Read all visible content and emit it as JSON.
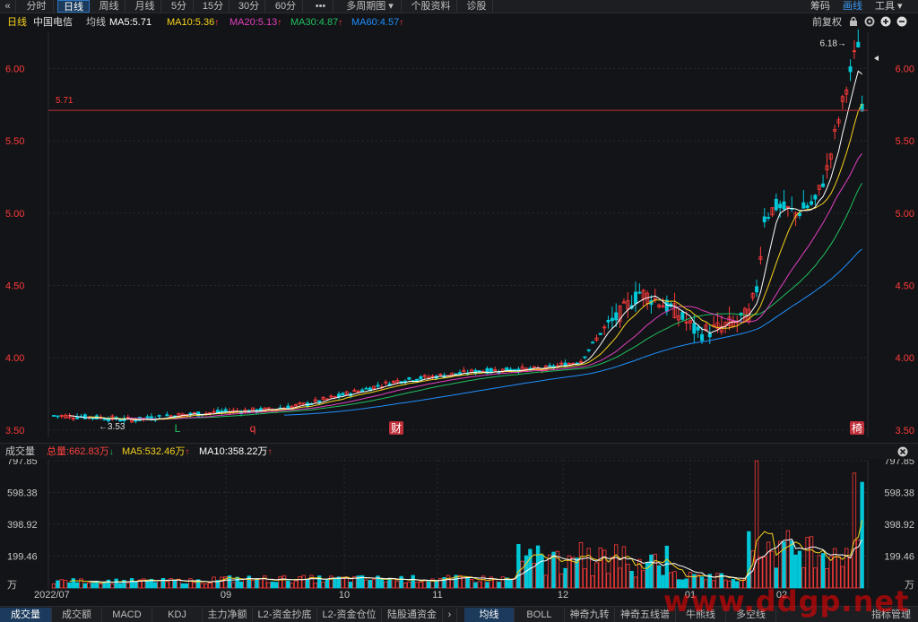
{
  "toolbar": {
    "back_icon": "«",
    "tabs": [
      "分时",
      "日线",
      "周线",
      "月线",
      "5分",
      "15分",
      "30分",
      "60分",
      "•••",
      "多周期图 ▾",
      "个股资料",
      "诊股"
    ],
    "active_tab": "日线",
    "right": [
      "筹码",
      "画线",
      "工具 ▾"
    ]
  },
  "header": {
    "period": "日线",
    "stock_name": "中国电信",
    "ma_title": "均线",
    "ma5": "MA5:5.71",
    "ma10": "MA10:5.36",
    "ma20": "MA20:5.13",
    "ma30": "MA30:4.87",
    "ma60": "MA60:4.57",
    "fq": "前复权"
  },
  "colors": {
    "up": "#ff3b3b",
    "down": "#00c8d8",
    "ma5": "#ffffff",
    "ma10": "#f5d21e",
    "ma20": "#e040c0",
    "ma30": "#20c060",
    "ma60": "#1e90ff",
    "axis_text": "#ff3b3b"
  },
  "chart_data": [
    {
      "type": "candlestick",
      "title": "中国电信 日线",
      "y_ticks": [
        "6.00",
        "5.50",
        "5.00",
        "4.50",
        "4.00",
        "3.50"
      ],
      "ylim": [
        3.45,
        6.25
      ],
      "reference_line": "5.71",
      "max_label": "6.18",
      "min_label": "3.53",
      "events": [
        "L",
        "q",
        "财",
        "椅"
      ],
      "x_ticks": [
        "2022/07",
        "09",
        "10",
        "11",
        "12",
        "01",
        "02"
      ]
    },
    {
      "type": "bar",
      "title": "成交量",
      "legend": [
        "总量:662.83万",
        "MA5:532.46万",
        "MA10:358.22万"
      ],
      "y_ticks": [
        "797.85",
        "598.38",
        "398.92",
        "199.46",
        "万"
      ],
      "ylim": [
        0,
        797.85
      ]
    }
  ],
  "volume": {
    "title": "成交量",
    "total": "总量:662.83万",
    "ma5": "MA5:532.46万",
    "ma10": "MA10:358.22万"
  },
  "bottom_tabs": [
    "成交量",
    "成交额",
    "MACD",
    "KDJ",
    "主力净额",
    "L2-资金抄底",
    "L2-资金仓位",
    "陆股通资金"
  ],
  "bottom_more": "›",
  "bottom_right": [
    "均线",
    "BOLL",
    "神奇九转",
    "神奇五线谱",
    "牛熊线",
    "多空线"
  ],
  "bottom_end": "指标管理",
  "watermark": "www.ddgp.net"
}
